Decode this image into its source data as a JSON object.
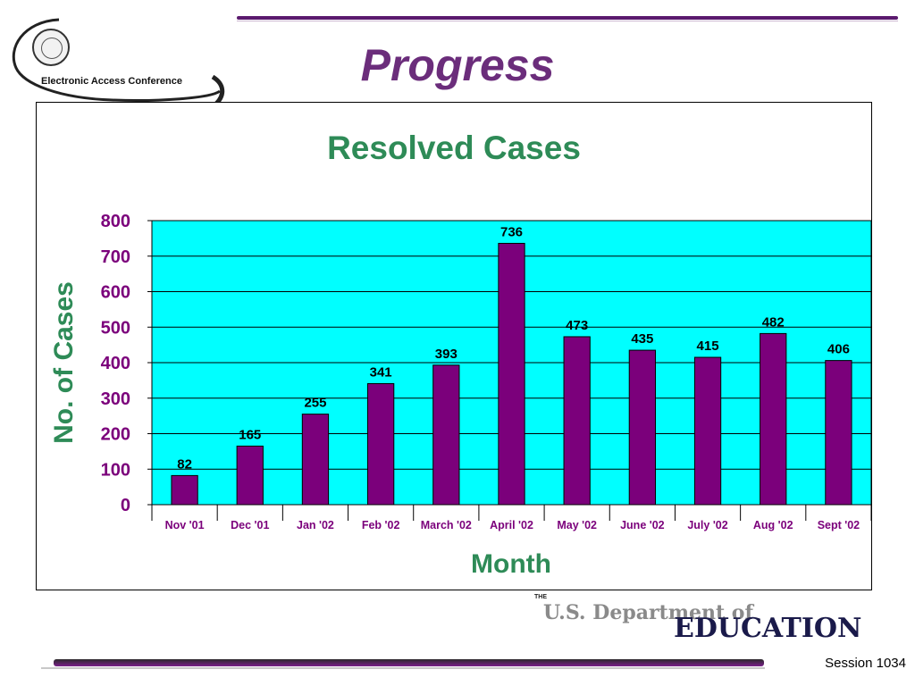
{
  "header": {
    "conference_label": "Electronic Access Conference",
    "slide_title": "Progress"
  },
  "footer": {
    "dept_the": "THE",
    "dept_name": "U.S. Department of",
    "dept_education": "EDUCATION",
    "session_label": "Session 1034"
  },
  "colors": {
    "title_purple": "#6b2d7b",
    "bar_fill": "#7b007b",
    "plot_bg": "#00ffff",
    "axis_text": "#7b007b",
    "label_green": "#2e8b57"
  },
  "chart_data": {
    "type": "bar",
    "title": "Resolved Cases",
    "xlabel": "Month",
    "ylabel": "No. of Cases",
    "categories": [
      "Nov '01",
      "Dec '01",
      "Jan '02",
      "Feb '02",
      "March '02",
      "April '02",
      "May '02",
      "June '02",
      "July '02",
      "Aug '02",
      "Sept '02"
    ],
    "values": [
      82,
      165,
      255,
      341,
      393,
      736,
      473,
      435,
      415,
      482,
      406
    ],
    "ylim": [
      0,
      800
    ],
    "yticks": [
      0,
      100,
      200,
      300,
      400,
      500,
      600,
      700,
      800
    ],
    "grid": true,
    "data_labels": true,
    "legend": "none"
  }
}
